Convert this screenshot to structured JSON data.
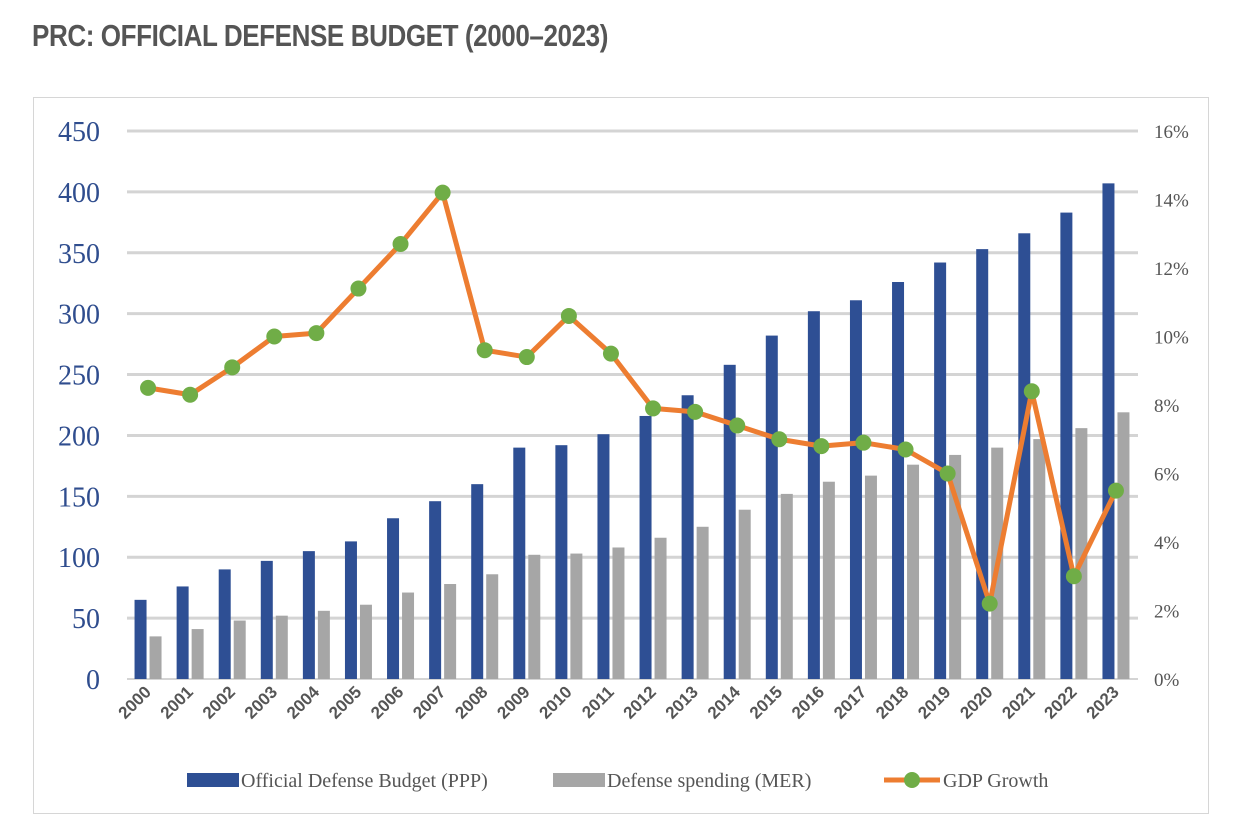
{
  "page": {
    "title": "PRC: OFFICIAL DEFENSE BUDGET (2000–2023)"
  },
  "chart_data": {
    "type": "bar",
    "title": "PRC: OFFICIAL DEFENSE BUDGET (2000–2023)",
    "xlabel": "",
    "ylabel": "",
    "y2label": "",
    "categories": [
      "2000",
      "2001",
      "2002",
      "2003",
      "2004",
      "2005",
      "2006",
      "2007",
      "2008",
      "2009",
      "2010",
      "2011",
      "2012",
      "2013",
      "2014",
      "2015",
      "2016",
      "2017",
      "2018",
      "2019",
      "2020",
      "2021",
      "2022",
      "2023"
    ],
    "ylim": [
      0,
      450
    ],
    "y_ticks": [
      0,
      50,
      100,
      150,
      200,
      250,
      300,
      350,
      400,
      450
    ],
    "y2lim": [
      0,
      16
    ],
    "y2_ticks": [
      0,
      2,
      4,
      6,
      8,
      10,
      12,
      14,
      16
    ],
    "y2_tick_labels": [
      "0%",
      "2%",
      "4%",
      "6%",
      "8%",
      "10%",
      "12%",
      "14%",
      "16%"
    ],
    "grid": true,
    "legend_position": "bottom",
    "series": [
      {
        "name": "Official Defense Budget (PPP)",
        "type": "bar",
        "axis": "left",
        "color": "#2e4f94",
        "values": [
          65,
          76,
          90,
          97,
          105,
          113,
          132,
          146,
          160,
          190,
          192,
          201,
          216,
          233,
          258,
          282,
          302,
          311,
          326,
          342,
          353,
          366,
          383,
          407
        ]
      },
      {
        "name": "Defense spending (MER)",
        "type": "bar",
        "axis": "left",
        "color": "#a6a6a6",
        "values": [
          35,
          41,
          48,
          52,
          56,
          61,
          71,
          78,
          86,
          102,
          103,
          108,
          116,
          125,
          139,
          152,
          162,
          167,
          176,
          184,
          190,
          197,
          206,
          219
        ]
      },
      {
        "name": "GDP Growth",
        "type": "line",
        "axis": "right",
        "color": "#ed7d31",
        "marker_color": "#70ad47",
        "values": [
          8.5,
          8.3,
          9.1,
          10.0,
          10.1,
          11.4,
          12.7,
          14.2,
          9.6,
          9.4,
          10.6,
          9.5,
          7.9,
          7.8,
          7.4,
          7.0,
          6.8,
          6.9,
          6.7,
          6.0,
          2.2,
          8.4,
          3.0,
          5.5
        ]
      }
    ]
  }
}
